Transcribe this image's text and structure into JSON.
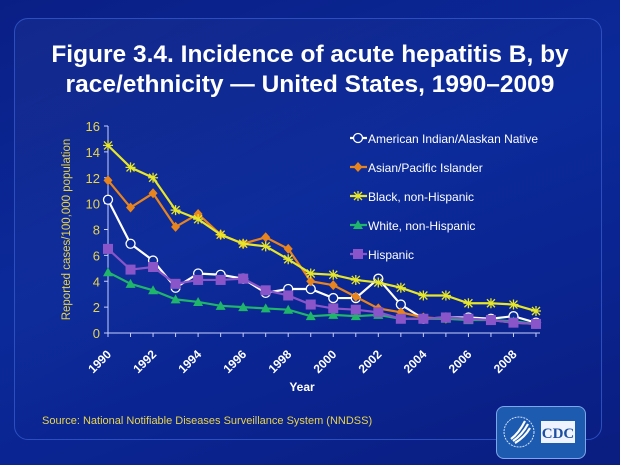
{
  "title": "Figure 3.4. Incidence of acute hepatitis B, by race/ethnicity — United States, 1990–2009",
  "source": "Source: National Notifiable Diseases Surveillance System (NNDSS)",
  "logo": {
    "text": "CDC"
  },
  "chart_data": {
    "type": "line",
    "title": "Figure 3.4. Incidence of acute hepatitis B, by race/ethnicity — United States, 1990–2009",
    "xlabel": "Year",
    "ylabel": "Reported cases/100,000 population",
    "ylim": [
      0,
      16
    ],
    "yticks": [
      0,
      2,
      4,
      6,
      8,
      10,
      12,
      14,
      16
    ],
    "x": [
      1990,
      1991,
      1992,
      1993,
      1994,
      1995,
      1996,
      1997,
      1998,
      1999,
      2000,
      2001,
      2002,
      2003,
      2004,
      2005,
      2006,
      2007,
      2008,
      2009
    ],
    "xtick_labels": [
      "1990",
      "1992",
      "1994",
      "1996",
      "1998",
      "2000",
      "2002",
      "2004",
      "2006",
      "2008"
    ],
    "grid": false,
    "legend_position": "right",
    "series": [
      {
        "name": "American Indian/Alaskan Native",
        "color": "#ffffff",
        "marker": "open-circle",
        "values": [
          10.3,
          6.9,
          5.6,
          3.5,
          4.6,
          4.5,
          4.2,
          3.1,
          3.4,
          3.4,
          2.7,
          2.7,
          4.2,
          2.2,
          1.1,
          1.2,
          1.2,
          1.1,
          1.3,
          0.8
        ]
      },
      {
        "name": "Asian/Pacific Islander",
        "color": "#e8841e",
        "marker": "diamond",
        "values": [
          11.8,
          9.7,
          10.8,
          8.2,
          9.2,
          7.6,
          6.9,
          7.4,
          6.5,
          4.0,
          3.7,
          2.8,
          1.9,
          1.6,
          1.2,
          1.1,
          1.1,
          1.0,
          0.8,
          0.7
        ]
      },
      {
        "name": "Black, non-Hispanic",
        "color": "#e6e62a",
        "marker": "asterisk",
        "values": [
          14.5,
          12.8,
          12.0,
          9.5,
          8.8,
          7.6,
          6.9,
          6.7,
          5.7,
          4.6,
          4.5,
          4.1,
          3.9,
          3.5,
          2.9,
          2.9,
          2.3,
          2.3,
          2.2,
          1.7
        ]
      },
      {
        "name": "White, non-Hispanic",
        "color": "#1fb56a",
        "marker": "triangle",
        "values": [
          4.7,
          3.8,
          3.3,
          2.6,
          2.4,
          2.1,
          2.0,
          1.9,
          1.8,
          1.3,
          1.4,
          1.3,
          1.4,
          1.1,
          1.1,
          1.1,
          1.0,
          1.0,
          0.9,
          0.7
        ]
      },
      {
        "name": "Hispanic",
        "color": "#8a55c8",
        "marker": "square",
        "values": [
          6.5,
          4.9,
          5.1,
          3.8,
          4.1,
          4.1,
          4.2,
          3.3,
          2.9,
          2.2,
          1.9,
          1.8,
          1.6,
          1.1,
          1.1,
          1.2,
          1.1,
          1.0,
          0.8,
          0.7
        ]
      }
    ]
  }
}
